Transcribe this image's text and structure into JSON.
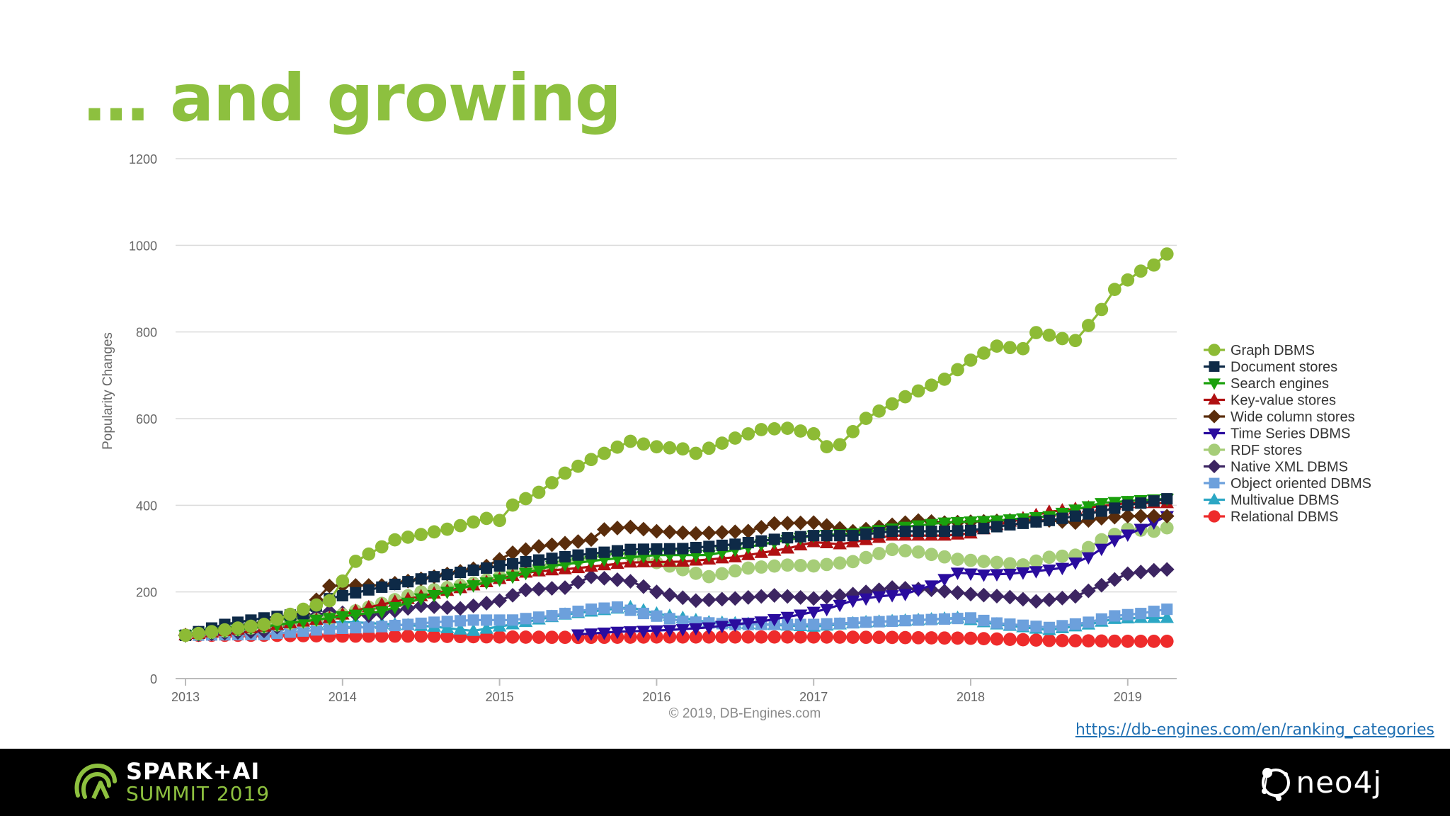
{
  "slide": {
    "title": "… and growing",
    "title_color": "#8DC03F",
    "source_url": "https://db-engines.com/en/ranking_categories",
    "link_color": "#1F6FB2"
  },
  "footer": {
    "logo_line1": "SPARK+AI",
    "logo_line2": "SUMMIT 2019",
    "logo_accent": "#8DC03F",
    "right_logo": "neo4j"
  },
  "chart_data": {
    "type": "line",
    "title": "",
    "xlabel": "",
    "ylabel": "Popularity Changes",
    "credit": "© 2019, DB-Engines.com",
    "ylim": [
      0,
      1200
    ],
    "yticks": [
      0,
      200,
      400,
      600,
      800,
      1000,
      1200
    ],
    "xlim": [
      2013.0,
      2019.3
    ],
    "xticks": [
      2013,
      2014,
      2015,
      2016,
      2017,
      2018,
      2019
    ],
    "grid": true,
    "legend_position": "right",
    "series": [
      {
        "name": "Graph DBMS",
        "color": "#8DBB35",
        "marker": "circle",
        "points": [
          [
            2013.0,
            100
          ],
          [
            2013.5,
            125
          ],
          [
            2013.75,
            160
          ],
          [
            2013.92,
            180
          ],
          [
            2014.0,
            225
          ],
          [
            2014.08,
            270
          ],
          [
            2014.33,
            320
          ],
          [
            2014.67,
            345
          ],
          [
            2014.92,
            370
          ],
          [
            2015.0,
            365
          ],
          [
            2015.08,
            400
          ],
          [
            2015.25,
            430
          ],
          [
            2015.42,
            475
          ],
          [
            2015.58,
            505
          ],
          [
            2015.83,
            548
          ],
          [
            2016.0,
            535
          ],
          [
            2016.17,
            530
          ],
          [
            2016.25,
            520
          ],
          [
            2016.5,
            555
          ],
          [
            2016.67,
            575
          ],
          [
            2016.83,
            578
          ],
          [
            2017.0,
            565
          ],
          [
            2017.08,
            535
          ],
          [
            2017.17,
            540
          ],
          [
            2017.33,
            600
          ],
          [
            2017.58,
            650
          ],
          [
            2017.83,
            690
          ],
          [
            2018.0,
            735
          ],
          [
            2018.17,
            768
          ],
          [
            2018.33,
            760
          ],
          [
            2018.42,
            800
          ],
          [
            2018.58,
            785
          ],
          [
            2018.67,
            780
          ],
          [
            2018.83,
            850
          ],
          [
            2018.92,
            900
          ],
          [
            2019.08,
            940
          ],
          [
            2019.17,
            955
          ],
          [
            2019.25,
            980
          ]
        ]
      },
      {
        "name": "Document stores",
        "color": "#0E2A47",
        "marker": "square",
        "points": [
          [
            2013.0,
            100
          ],
          [
            2013.25,
            125
          ],
          [
            2013.5,
            140
          ],
          [
            2013.75,
            150
          ],
          [
            2013.92,
            185
          ],
          [
            2014.17,
            205
          ],
          [
            2014.5,
            230
          ],
          [
            2014.83,
            250
          ],
          [
            2015.17,
            270
          ],
          [
            2015.5,
            285
          ],
          [
            2015.83,
            298
          ],
          [
            2016.17,
            300
          ],
          [
            2016.5,
            310
          ],
          [
            2016.83,
            325
          ],
          [
            2017.0,
            330
          ],
          [
            2017.25,
            330
          ],
          [
            2017.5,
            340
          ],
          [
            2017.83,
            340
          ],
          [
            2018.0,
            342
          ],
          [
            2018.25,
            355
          ],
          [
            2018.5,
            365
          ],
          [
            2018.75,
            380
          ],
          [
            2019.0,
            400
          ],
          [
            2019.25,
            415
          ]
        ]
      },
      {
        "name": "Search engines",
        "color": "#1AA00C",
        "marker": "tri-down",
        "points": [
          [
            2013.0,
            100
          ],
          [
            2013.5,
            120
          ],
          [
            2013.92,
            140
          ],
          [
            2014.25,
            155
          ],
          [
            2014.5,
            185
          ],
          [
            2014.83,
            215
          ],
          [
            2015.08,
            235
          ],
          [
            2015.33,
            260
          ],
          [
            2015.67,
            275
          ],
          [
            2016.0,
            285
          ],
          [
            2016.33,
            285
          ],
          [
            2016.67,
            310
          ],
          [
            2017.0,
            330
          ],
          [
            2017.25,
            335
          ],
          [
            2017.58,
            350
          ],
          [
            2017.83,
            360
          ],
          [
            2018.17,
            365
          ],
          [
            2018.5,
            375
          ],
          [
            2018.83,
            405
          ],
          [
            2019.0,
            410
          ],
          [
            2019.25,
            415
          ]
        ]
      },
      {
        "name": "Key-value stores",
        "color": "#B01012",
        "marker": "tri-up",
        "points": [
          [
            2013.0,
            100
          ],
          [
            2013.5,
            120
          ],
          [
            2013.92,
            140
          ],
          [
            2014.17,
            165
          ],
          [
            2014.5,
            190
          ],
          [
            2014.83,
            215
          ],
          [
            2015.17,
            245
          ],
          [
            2015.5,
            255
          ],
          [
            2015.83,
            268
          ],
          [
            2016.17,
            270
          ],
          [
            2016.5,
            280
          ],
          [
            2016.83,
            300
          ],
          [
            2017.0,
            315
          ],
          [
            2017.17,
            310
          ],
          [
            2017.5,
            330
          ],
          [
            2017.83,
            330
          ],
          [
            2018.0,
            335
          ],
          [
            2018.17,
            355
          ],
          [
            2018.5,
            385
          ],
          [
            2018.75,
            395
          ],
          [
            2019.0,
            405
          ],
          [
            2019.25,
            405
          ]
        ]
      },
      {
        "name": "Wide column stores",
        "color": "#5A2D0C",
        "marker": "diamond",
        "points": [
          [
            2013.0,
            100
          ],
          [
            2013.5,
            130
          ],
          [
            2013.75,
            150
          ],
          [
            2013.92,
            215
          ],
          [
            2014.25,
            215
          ],
          [
            2014.58,
            235
          ],
          [
            2014.92,
            260
          ],
          [
            2015.08,
            290
          ],
          [
            2015.25,
            305
          ],
          [
            2015.58,
            320
          ],
          [
            2015.67,
            345
          ],
          [
            2015.83,
            350
          ],
          [
            2016.0,
            340
          ],
          [
            2016.25,
            335
          ],
          [
            2016.58,
            340
          ],
          [
            2016.75,
            358
          ],
          [
            2017.0,
            360
          ],
          [
            2017.25,
            340
          ],
          [
            2017.5,
            355
          ],
          [
            2017.67,
            365
          ],
          [
            2017.83,
            360
          ],
          [
            2018.0,
            362
          ],
          [
            2018.25,
            365
          ],
          [
            2018.5,
            365
          ],
          [
            2018.67,
            360
          ],
          [
            2018.83,
            370
          ],
          [
            2019.0,
            375
          ],
          [
            2019.25,
            375
          ]
        ]
      },
      {
        "name": "Time Series DBMS",
        "color": "#2A0C9E",
        "marker": "tri-down",
        "points": [
          [
            2015.42,
            100
          ],
          [
            2015.75,
            108
          ],
          [
            2016.08,
            112
          ],
          [
            2016.33,
            118
          ],
          [
            2016.67,
            132
          ],
          [
            2016.92,
            148
          ],
          [
            2017.08,
            160
          ],
          [
            2017.25,
            180
          ],
          [
            2017.42,
            190
          ],
          [
            2017.58,
            195
          ],
          [
            2017.75,
            215
          ],
          [
            2017.92,
            245
          ],
          [
            2018.08,
            240
          ],
          [
            2018.25,
            242
          ],
          [
            2018.42,
            248
          ],
          [
            2018.58,
            255
          ],
          [
            2018.75,
            280
          ],
          [
            2018.92,
            320
          ],
          [
            2019.08,
            345
          ],
          [
            2019.25,
            375
          ]
        ]
      },
      {
        "name": "RDF stores",
        "color": "#A6CD78",
        "marker": "circle",
        "points": [
          [
            2013.0,
            100
          ],
          [
            2013.5,
            120
          ],
          [
            2013.92,
            140
          ],
          [
            2014.17,
            165
          ],
          [
            2014.5,
            200
          ],
          [
            2014.83,
            220
          ],
          [
            2015.17,
            250
          ],
          [
            2015.42,
            270
          ],
          [
            2015.75,
            292
          ],
          [
            2016.08,
            260
          ],
          [
            2016.33,
            235
          ],
          [
            2016.58,
            255
          ],
          [
            2016.83,
            262
          ],
          [
            2017.0,
            260
          ],
          [
            2017.25,
            270
          ],
          [
            2017.5,
            298
          ],
          [
            2017.67,
            292
          ],
          [
            2017.92,
            275
          ],
          [
            2018.17,
            268
          ],
          [
            2018.33,
            262
          ],
          [
            2018.5,
            280
          ],
          [
            2018.67,
            285
          ],
          [
            2018.83,
            320
          ],
          [
            2019.0,
            345
          ],
          [
            2019.17,
            340
          ],
          [
            2019.25,
            348
          ]
        ]
      },
      {
        "name": "Native XML DBMS",
        "color": "#3C2562",
        "marker": "diamond",
        "points": [
          [
            2013.0,
            100
          ],
          [
            2013.5,
            110
          ],
          [
            2013.92,
            155
          ],
          [
            2014.17,
            145
          ],
          [
            2014.5,
            168
          ],
          [
            2014.75,
            162
          ],
          [
            2015.0,
            180
          ],
          [
            2015.17,
            205
          ],
          [
            2015.42,
            210
          ],
          [
            2015.58,
            235
          ],
          [
            2015.83,
            225
          ],
          [
            2016.0,
            200
          ],
          [
            2016.25,
            180
          ],
          [
            2016.5,
            185
          ],
          [
            2016.75,
            192
          ],
          [
            2017.0,
            185
          ],
          [
            2017.25,
            195
          ],
          [
            2017.5,
            210
          ],
          [
            2017.75,
            205
          ],
          [
            2018.0,
            195
          ],
          [
            2018.25,
            188
          ],
          [
            2018.42,
            178
          ],
          [
            2018.67,
            190
          ],
          [
            2018.83,
            215
          ],
          [
            2019.0,
            242
          ],
          [
            2019.17,
            250
          ],
          [
            2019.25,
            252
          ]
        ]
      },
      {
        "name": "Object oriented DBMS",
        "color": "#6CA0DC",
        "marker": "square",
        "points": [
          [
            2013.0,
            100
          ],
          [
            2013.5,
            102
          ],
          [
            2013.92,
            115
          ],
          [
            2014.25,
            120
          ],
          [
            2014.58,
            130
          ],
          [
            2014.83,
            135
          ],
          [
            2015.08,
            135
          ],
          [
            2015.33,
            145
          ],
          [
            2015.58,
            160
          ],
          [
            2015.75,
            165
          ],
          [
            2015.92,
            150
          ],
          [
            2016.17,
            132
          ],
          [
            2016.5,
            125
          ],
          [
            2016.83,
            125
          ],
          [
            2017.0,
            125
          ],
          [
            2017.33,
            130
          ],
          [
            2017.67,
            135
          ],
          [
            2018.0,
            140
          ],
          [
            2018.17,
            128
          ],
          [
            2018.5,
            118
          ],
          [
            2018.75,
            130
          ],
          [
            2018.92,
            145
          ],
          [
            2019.08,
            150
          ],
          [
            2019.25,
            160
          ]
        ]
      },
      {
        "name": "Multivalue DBMS",
        "color": "#2CA7C4",
        "marker": "tri-up",
        "points": [
          [
            2013.0,
            100
          ],
          [
            2013.42,
            118
          ],
          [
            2013.92,
            130
          ],
          [
            2014.08,
            130
          ],
          [
            2014.58,
            120
          ],
          [
            2014.83,
            110
          ],
          [
            2015.08,
            125
          ],
          [
            2015.42,
            148
          ],
          [
            2015.83,
            165
          ],
          [
            2016.0,
            150
          ],
          [
            2016.33,
            130
          ],
          [
            2016.67,
            125
          ],
          [
            2017.0,
            120
          ],
          [
            2017.33,
            130
          ],
          [
            2017.67,
            135
          ],
          [
            2017.92,
            140
          ],
          [
            2018.17,
            125
          ],
          [
            2018.5,
            112
          ],
          [
            2018.75,
            125
          ],
          [
            2018.92,
            138
          ],
          [
            2019.08,
            140
          ],
          [
            2019.25,
            140
          ]
        ]
      },
      {
        "name": "Relational DBMS",
        "color": "#EE2B2B",
        "marker": "circle",
        "points": [
          [
            2013.0,
            100
          ],
          [
            2013.5,
            100
          ],
          [
            2014.0,
            98
          ],
          [
            2014.5,
            98
          ],
          [
            2015.0,
            96
          ],
          [
            2015.5,
            95
          ],
          [
            2016.0,
            96
          ],
          [
            2016.5,
            96
          ],
          [
            2017.0,
            96
          ],
          [
            2017.5,
            95
          ],
          [
            2018.0,
            93
          ],
          [
            2018.5,
            88
          ],
          [
            2019.0,
            86
          ],
          [
            2019.25,
            86
          ]
        ]
      }
    ]
  }
}
